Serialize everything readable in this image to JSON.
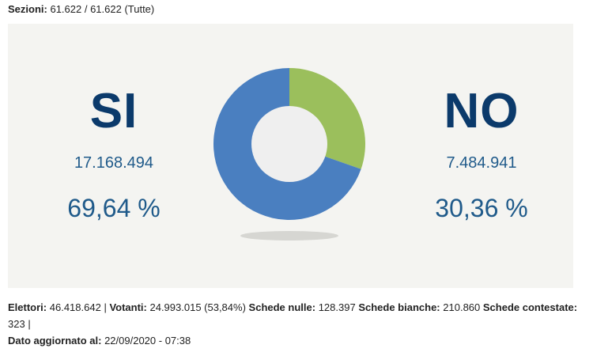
{
  "sezioni": {
    "label": "Sezioni:",
    "value": "61.622 / 61.622 (Tutte)"
  },
  "results": {
    "si": {
      "label": "SI",
      "votes": "17.168.494",
      "percent": "69,64 %"
    },
    "no": {
      "label": "NO",
      "votes": "7.484.941",
      "percent": "30,36 %"
    }
  },
  "colors": {
    "si": "#4a7fc0",
    "no": "#9bbf5c",
    "label": "#0b3a6b",
    "value": "#1f5a8a"
  },
  "chart_data": {
    "type": "pie",
    "categories": [
      "SI",
      "NO"
    ],
    "values": [
      69.64,
      30.36
    ],
    "title": ""
  },
  "footer": {
    "elettori_label": "Elettori:",
    "elettori_value": "46.418.642",
    "votanti_label": "Votanti:",
    "votanti_value": "24.993.015 (53,84%)",
    "nulle_label": "Schede nulle:",
    "nulle_value": "128.397",
    "bianche_label": "Schede bianche:",
    "bianche_value": "210.860",
    "contestate_label": "Schede contestate:",
    "contestate_value": "323",
    "aggiornato_label": "Dato aggiornato al:",
    "aggiornato_value": "22/09/2020 - 07:38"
  }
}
